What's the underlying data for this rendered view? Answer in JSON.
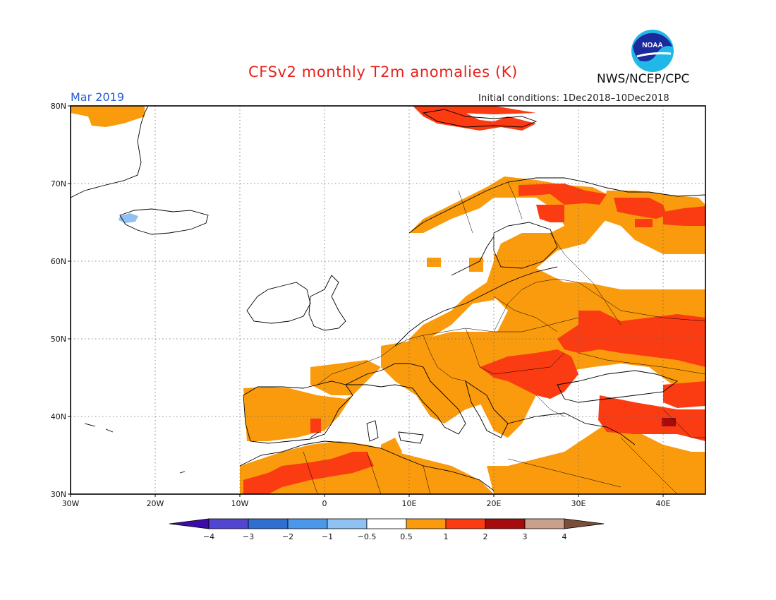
{
  "header": {
    "title": "CFSv2 monthly T2m anomalies (K)",
    "agency": "NWS/NCEP/CPC",
    "valid_month": "Mar 2019",
    "initial_conditions": "Initial conditions: 1Dec2018–10Dec2018",
    "logo_text": "NOAA"
  },
  "map": {
    "lon_range": [
      -30,
      45
    ],
    "lat_range": [
      30,
      80
    ],
    "lon_ticks": [
      {
        "value": -30,
        "label": "30W"
      },
      {
        "value": -20,
        "label": "20W"
      },
      {
        "value": -10,
        "label": "10W"
      },
      {
        "value": 0,
        "label": "0"
      },
      {
        "value": 10,
        "label": "10E"
      },
      {
        "value": 20,
        "label": "20E"
      },
      {
        "value": 30,
        "label": "30E"
      },
      {
        "value": 40,
        "label": "40E"
      }
    ],
    "lat_ticks": [
      {
        "value": 30,
        "label": "30N"
      },
      {
        "value": 40,
        "label": "40N"
      },
      {
        "value": 50,
        "label": "50N"
      },
      {
        "value": 60,
        "label": "60N"
      },
      {
        "value": 70,
        "label": "70N"
      },
      {
        "value": 80,
        "label": "80N"
      }
    ],
    "grid": "dotted"
  },
  "colorbar": {
    "labels": [
      "−4",
      "−3",
      "−2",
      "−1",
      "−0.5",
      "0.5",
      "1",
      "2",
      "3",
      "4"
    ],
    "colors": [
      "#3b0ca8",
      "#5046d2",
      "#2e6fd0",
      "#4b98ea",
      "#8fc2f2",
      "#ffffff",
      "#f99b0c",
      "#fb3b12",
      "#a70c0c",
      "#c9a08c",
      "#7a4f3a"
    ]
  },
  "colors": {
    "band_0_5_to_1": "#f99b0c",
    "band_1_to_2": "#fb3b12",
    "band_2_to_3": "#a70c0c",
    "band_neg_1_to_neg_0_5": "#8fc2f2",
    "title": "#e8221c",
    "valid_month": "#2a5cd6"
  }
}
